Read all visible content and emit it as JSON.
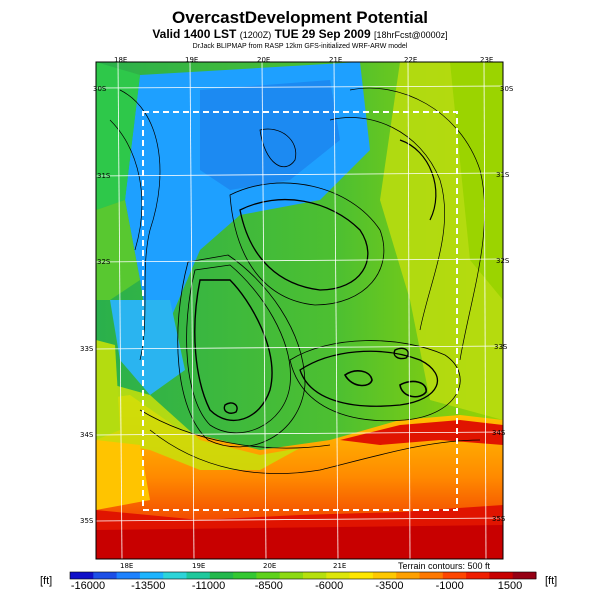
{
  "header": {
    "title": "OvercastDevelopment Potential",
    "subtitle_main": "Valid 1400 LST",
    "subtitle_small": "(1200Z)",
    "subtitle_date": "TUE 29 Sep 2009",
    "subtitle_fcst": "[18hrFcst@0000z]",
    "source_line": "DrJack BLIPMAP from RASP 12km GFS-initialized WRF-ARW model"
  },
  "map": {
    "longitude_labels": [
      "18E",
      "19E",
      "20E",
      "21E",
      "22E",
      "23E"
    ],
    "latitude_labels": [
      "30S",
      "31S",
      "32S",
      "33S",
      "34S",
      "35S"
    ],
    "colors": {
      "sea": "#cc0000",
      "coast": "#ff6a00",
      "interior_low": "#1ea0ff",
      "interior_mid": "#2ec84a",
      "interior_high": "#9bd400",
      "contours": "#000000",
      "grid": "#ffffff"
    }
  },
  "legend": {
    "unit_left": "[ft]",
    "unit_right": "[ft]",
    "terrain_note": "Terrain contours: 500 ft",
    "tick_labels": [
      "-16000",
      "-13500",
      "-11000",
      "-8500",
      "-6000",
      "-3500",
      "-1000",
      "1500"
    ],
    "colors": [
      "#1010c8",
      "#1d4fe6",
      "#1e82ff",
      "#1eb4ff",
      "#2dd4d8",
      "#1fc89c",
      "#24b84c",
      "#34c832",
      "#5ed21c",
      "#8cda14",
      "#b6e00e",
      "#dde60a",
      "#ffe600",
      "#ffc800",
      "#ffa000",
      "#ff7800",
      "#ff4600",
      "#f01e00",
      "#c80000",
      "#960014"
    ]
  }
}
